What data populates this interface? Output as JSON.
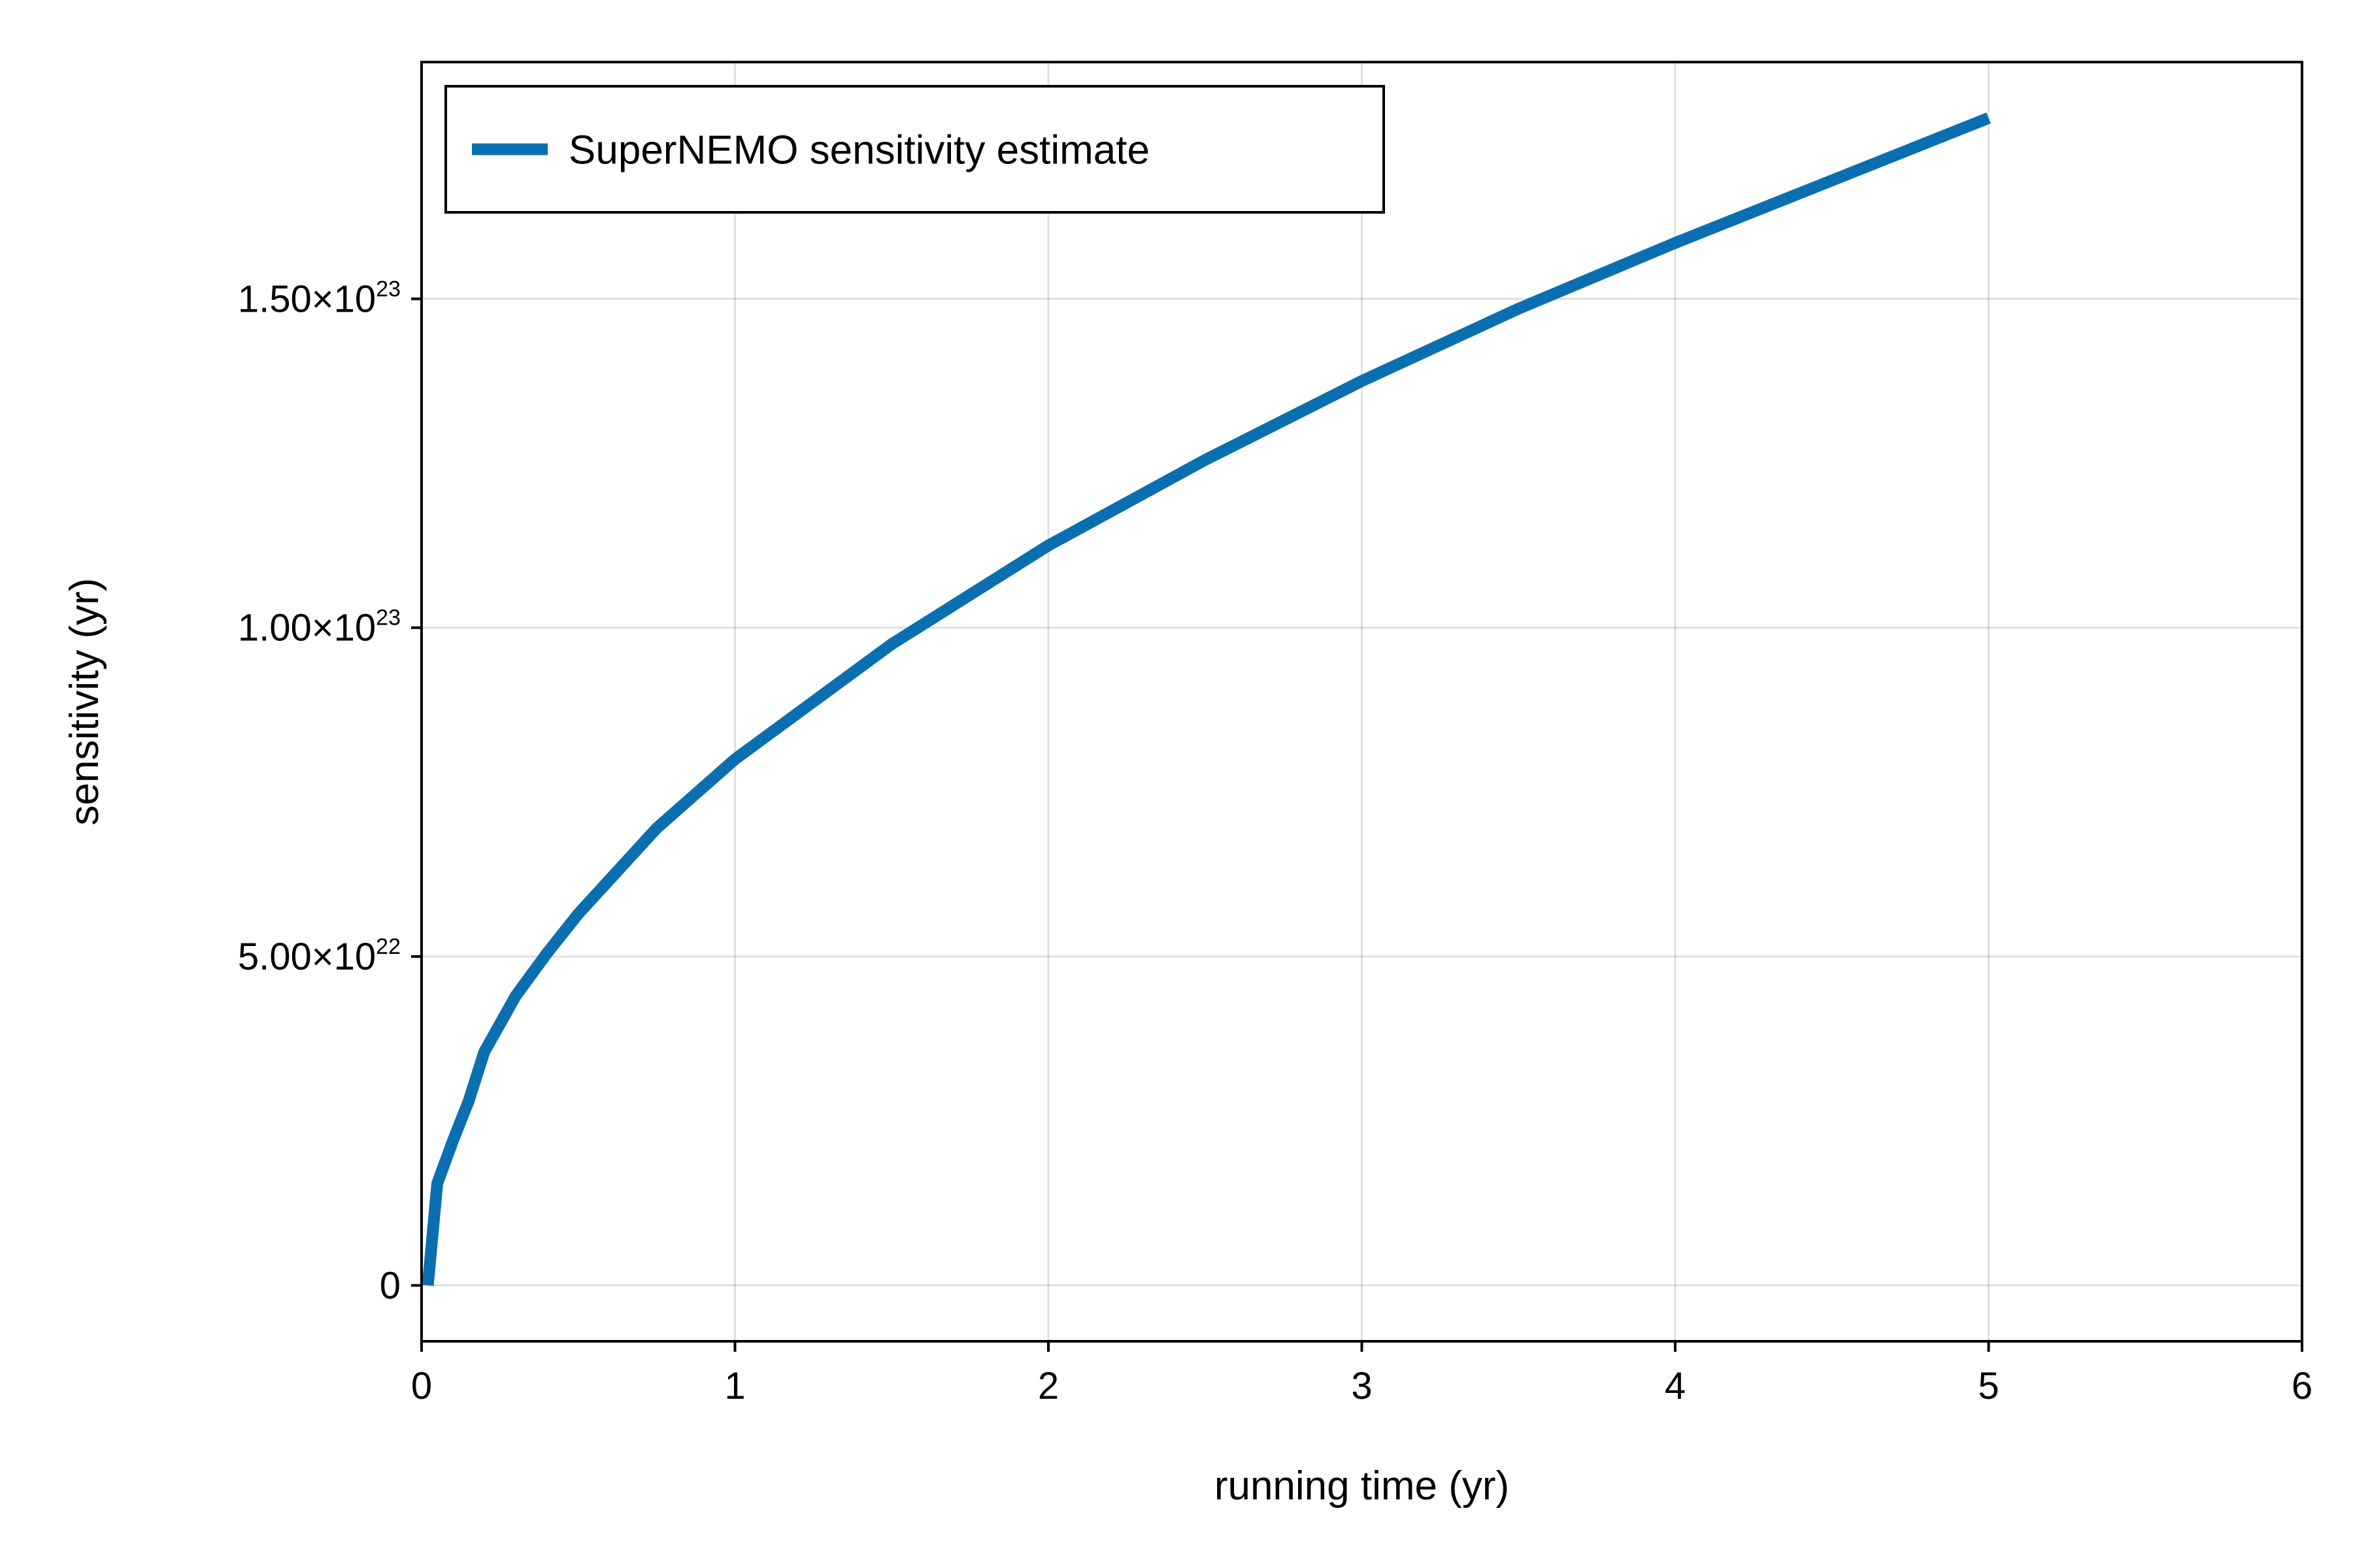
{
  "chart_data": {
    "type": "line",
    "title": "",
    "xlabel": "running time (yr)",
    "ylabel": "sensitivity (yr)",
    "xlim": [
      0,
      6
    ],
    "ylim": [
      -8.5e+21,
      1.86e+23
    ],
    "grid": true,
    "legend_position": "top-left",
    "x_ticks": [
      {
        "value": 0,
        "label": "0"
      },
      {
        "value": 1,
        "label": "1"
      },
      {
        "value": 2,
        "label": "2"
      },
      {
        "value": 3,
        "label": "3"
      },
      {
        "value": 4,
        "label": "4"
      },
      {
        "value": 5,
        "label": "5"
      },
      {
        "value": 6,
        "label": "6"
      }
    ],
    "y_ticks": [
      {
        "value": 0,
        "mantissa": "0",
        "exponent": ""
      },
      {
        "value": 5e+22,
        "mantissa": "5.00×10",
        "exponent": "22"
      },
      {
        "value": 1e+23,
        "mantissa": "1.00×10",
        "exponent": "23"
      },
      {
        "value": 1.5e+23,
        "mantissa": "1.50×10",
        "exponent": "23"
      }
    ],
    "series": [
      {
        "name": "SuperNEMO sensitivity estimate",
        "color": "#0a6fb0",
        "x": [
          0.02,
          0.05,
          0.1,
          0.15,
          0.2,
          0.3,
          0.4,
          0.5,
          0.75,
          1.0,
          1.5,
          2.0,
          2.5,
          3.0,
          3.5,
          4.0,
          4.5,
          5.0
        ],
        "y": [
          0,
          1.55e+22,
          2.2e+22,
          2.8e+22,
          3.55e+22,
          4.4e+22,
          5.05e+22,
          5.65e+22,
          6.95e+22,
          8e+22,
          9.75e+22,
          1.125e+23,
          1.255e+23,
          1.375e+23,
          1.485e+23,
          1.585e+23,
          1.68e+23,
          1.775e+23
        ]
      }
    ]
  }
}
